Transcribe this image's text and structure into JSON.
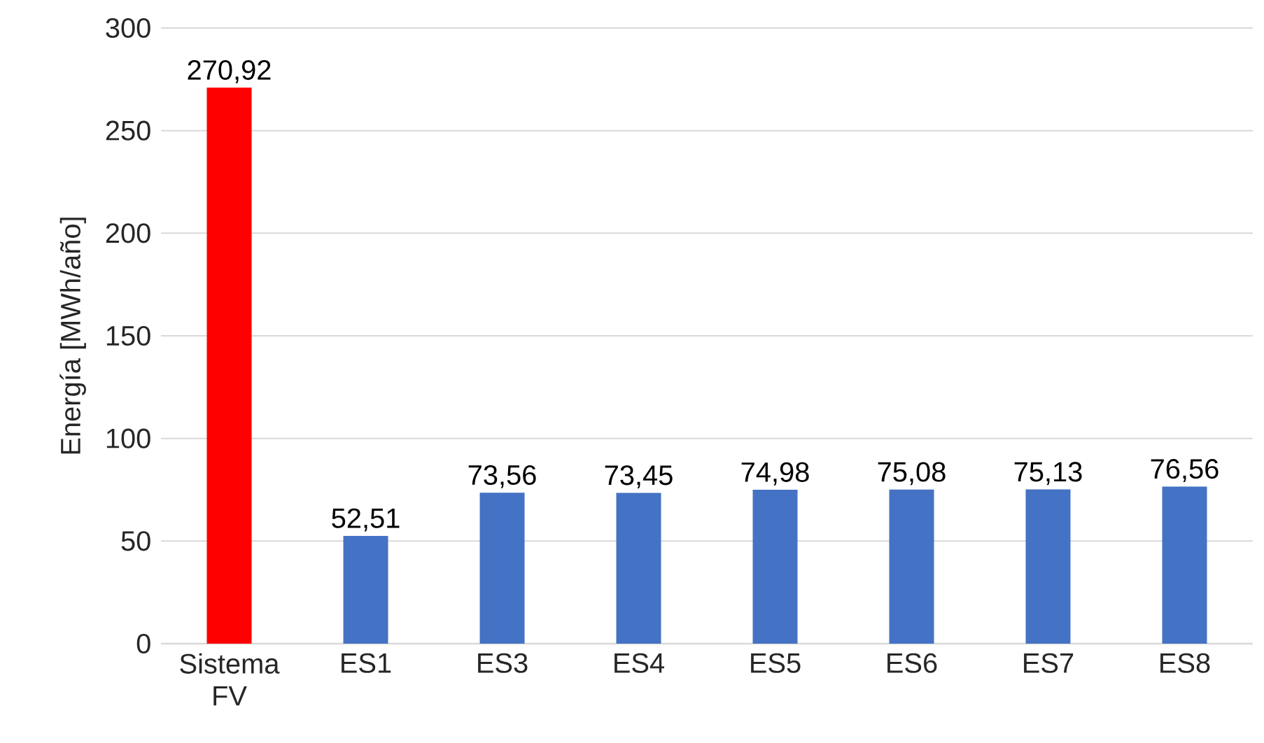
{
  "chart_data": {
    "type": "bar",
    "ylabel": "Energía [MWh/año]",
    "categories": [
      "Sistema FV",
      "ES1",
      "ES3",
      "ES4",
      "ES5",
      "ES6",
      "ES7",
      "ES8"
    ],
    "values": [
      270.92,
      52.51,
      73.56,
      73.45,
      74.98,
      75.08,
      75.13,
      76.56
    ],
    "value_labels": [
      "270,92",
      "52,51",
      "73,56",
      "73,45",
      "74,98",
      "75,08",
      "75,13",
      "76,56"
    ],
    "colors": [
      "#ff0000",
      "#4472c4",
      "#4472c4",
      "#4472c4",
      "#4472c4",
      "#4472c4",
      "#4472c4",
      "#4472c4"
    ],
    "ylim": [
      0,
      300
    ],
    "yticks": [
      0,
      50,
      100,
      150,
      200,
      250,
      300
    ],
    "grid": "y"
  }
}
